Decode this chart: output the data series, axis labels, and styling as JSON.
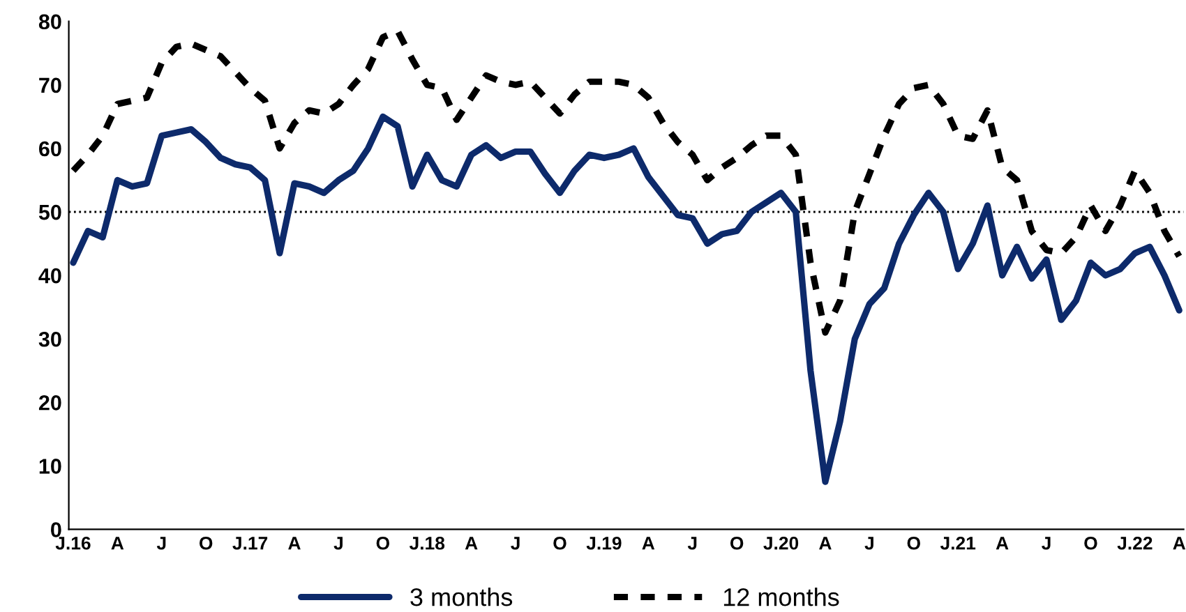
{
  "chart_data": {
    "type": "line",
    "categories": [
      "J.16",
      null,
      null,
      "A",
      null,
      null,
      "J",
      null,
      null,
      "O",
      null,
      null,
      "J.17",
      null,
      null,
      "A",
      null,
      null,
      "J",
      null,
      null,
      "O",
      null,
      null,
      "J.18",
      null,
      null,
      "A",
      null,
      null,
      "J",
      null,
      null,
      "O",
      null,
      null,
      "J.19",
      null,
      null,
      "A",
      null,
      null,
      "J",
      null,
      null,
      "O",
      null,
      null,
      "J.20",
      null,
      null,
      "A",
      null,
      null,
      "J",
      null,
      null,
      "O",
      null,
      null,
      "J.21",
      null,
      null,
      "A",
      null,
      null,
      "J",
      null,
      null,
      "O",
      null,
      null,
      "J.22",
      null,
      null,
      "A"
    ],
    "series": [
      {
        "name": "3 months",
        "color": "#0d2a6b",
        "line_style": "solid",
        "values": [
          42,
          47,
          46,
          55,
          54,
          54.5,
          62,
          62.5,
          63,
          61,
          58.5,
          57.5,
          57,
          55,
          43.5,
          54.5,
          54,
          53,
          55,
          56.5,
          60,
          65,
          63.5,
          54,
          59,
          55,
          54,
          59,
          60.5,
          58.5,
          59.5,
          59.5,
          56,
          53,
          56.5,
          59,
          58.5,
          59,
          60,
          55.5,
          52.5,
          49.5,
          49,
          45,
          46.5,
          47,
          50,
          51.5,
          53,
          50,
          25,
          7.5,
          17,
          30,
          35.5,
          38,
          45,
          49.5,
          53,
          50,
          41,
          45,
          51,
          40,
          44.5,
          39.5,
          42.5,
          33,
          36,
          42,
          40,
          41,
          43.5,
          44.5,
          40,
          34.5
        ]
      },
      {
        "name": "12 months",
        "color": "#000000",
        "line_style": "dashed",
        "values": [
          56.5,
          59,
          62,
          67,
          67.5,
          68,
          73.5,
          76,
          76.5,
          75.5,
          74.5,
          72,
          69.5,
          67.5,
          60,
          64,
          66,
          65.5,
          67,
          70,
          72.5,
          77.5,
          78.5,
          74,
          70,
          69.5,
          64.5,
          68,
          71.5,
          70.5,
          70,
          70.5,
          68,
          65.5,
          68.5,
          70.5,
          70.5,
          70.5,
          70,
          68,
          64,
          61,
          59,
          55,
          57,
          58.5,
          60.5,
          62,
          62,
          59,
          42,
          31,
          36,
          50,
          56,
          62,
          67,
          69.5,
          70,
          67,
          62,
          61.5,
          66,
          57,
          55,
          47,
          44,
          43.5,
          46,
          51,
          47,
          51,
          56.5,
          53,
          47,
          43
        ]
      }
    ],
    "ylim": [
      0,
      80
    ],
    "yticks": [
      0,
      10,
      20,
      30,
      40,
      50,
      60,
      70,
      80
    ],
    "ref_lines": [
      {
        "axis": "y",
        "value": 50,
        "line_style": "dotted",
        "color": "#000000"
      }
    ],
    "grid": false,
    "legend": "bottom"
  }
}
